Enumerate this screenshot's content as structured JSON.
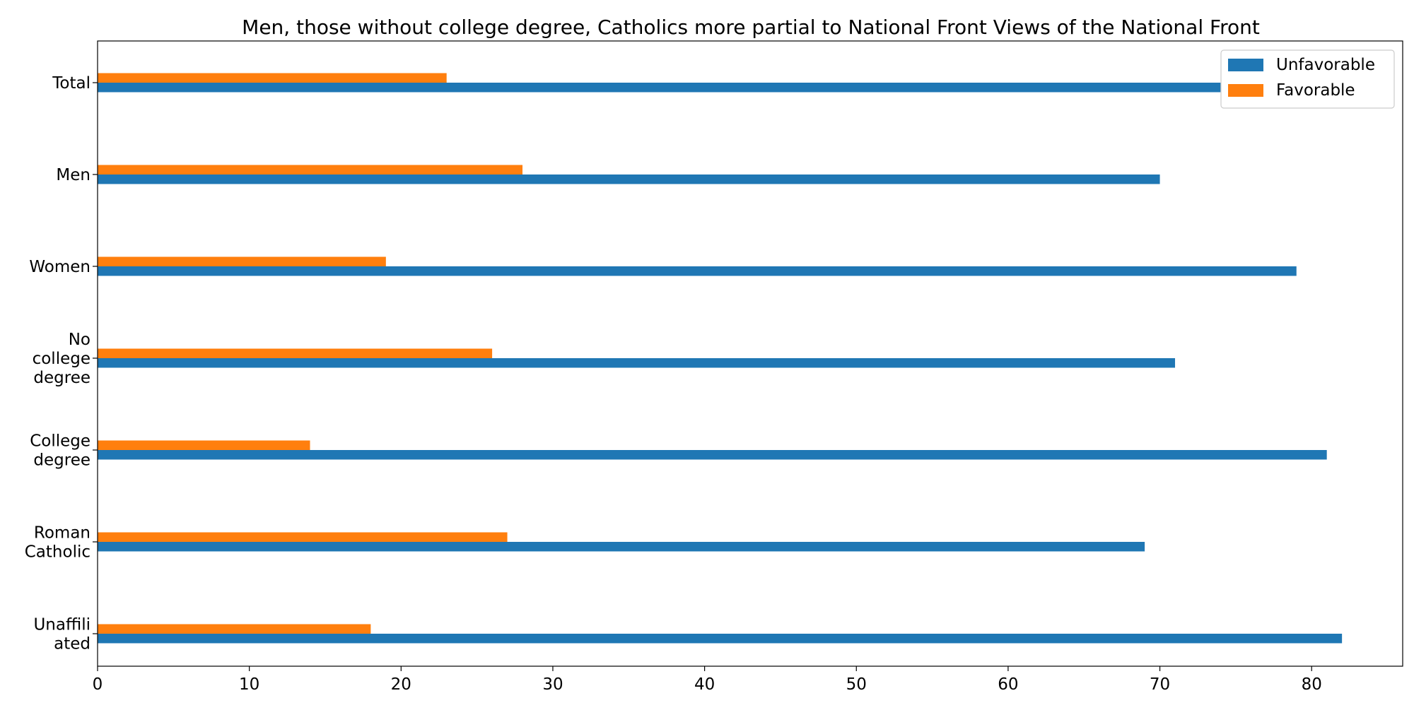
{
  "chart_data": {
    "type": "bar",
    "orientation": "horizontal",
    "title": "Men, those without college degree, Catholics more partial to National Front Views of the National Front",
    "xlabel": "",
    "ylabel": "",
    "categories": [
      [
        "Total"
      ],
      [
        "Men"
      ],
      [
        "Women"
      ],
      [
        "No",
        "college",
        "degree"
      ],
      [
        "College",
        "degree"
      ],
      [
        "Roman",
        "Catholic"
      ],
      [
        "Unaffili",
        "ated"
      ]
    ],
    "series": [
      {
        "name": "Unfavorable",
        "color": "#1f77b4",
        "values": [
          74,
          70,
          79,
          71,
          81,
          69,
          82
        ]
      },
      {
        "name": "Favorable",
        "color": "#ff7f0e",
        "values": [
          23,
          28,
          19,
          26,
          14,
          27,
          18
        ]
      }
    ],
    "xlim": [
      0,
      86
    ],
    "xticks": [
      0,
      10,
      20,
      30,
      40,
      50,
      60,
      70,
      80
    ],
    "grid": false,
    "legend_position": "top-right"
  }
}
